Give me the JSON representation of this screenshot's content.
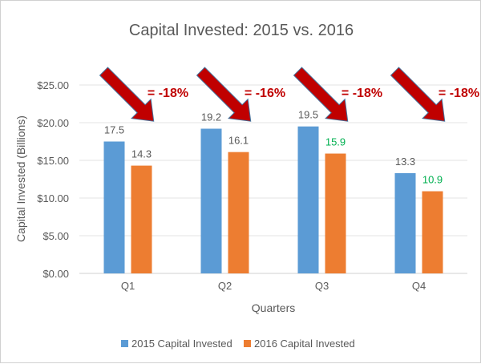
{
  "chart_data": {
    "type": "bar",
    "title": "Capital Invested: 2015 vs. 2016",
    "xlabel": "Quarters",
    "ylabel": "Capital Invested (Billions)",
    "categories": [
      "Q1",
      "Q2",
      "Q3",
      "Q4"
    ],
    "ylim": [
      0,
      25
    ],
    "yticks": [
      "$0.00",
      "$5.00",
      "$10.00",
      "$15.00",
      "$20.00",
      "$25.00"
    ],
    "grid": true,
    "legend": "bottom",
    "series": [
      {
        "name": "2015 Capital Invested",
        "values": [
          17.5,
          19.2,
          19.5,
          13.3
        ],
        "labels": [
          "17.5",
          "19.2",
          "19.5",
          "13.3"
        ],
        "color": "#5b9bd5",
        "label_colors": [
          "#595959",
          "#595959",
          "#595959",
          "#595959"
        ]
      },
      {
        "name": "2016 Capital Invested",
        "values": [
          14.3,
          16.1,
          15.9,
          10.9
        ],
        "labels": [
          "14.3",
          "16.1",
          "15.9",
          "10.9"
        ],
        "color": "#ed7d31",
        "label_colors": [
          "#595959",
          "#595959",
          "#00b050",
          "#00b050"
        ]
      }
    ],
    "annotations": [
      "= -18%",
      "= -16%",
      "= -18%",
      "= -18%"
    ],
    "annotation_color": "#c00000"
  }
}
